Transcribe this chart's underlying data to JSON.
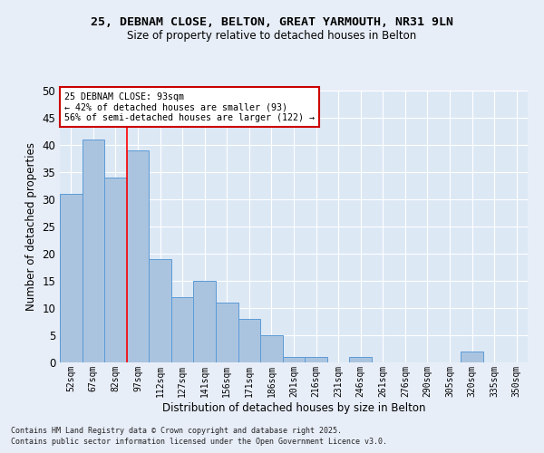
{
  "title1": "25, DEBNAM CLOSE, BELTON, GREAT YARMOUTH, NR31 9LN",
  "title2": "Size of property relative to detached houses in Belton",
  "xlabel": "Distribution of detached houses by size in Belton",
  "ylabel": "Number of detached properties",
  "categories": [
    "52sqm",
    "67sqm",
    "82sqm",
    "97sqm",
    "112sqm",
    "127sqm",
    "141sqm",
    "156sqm",
    "171sqm",
    "186sqm",
    "201sqm",
    "216sqm",
    "231sqm",
    "246sqm",
    "261sqm",
    "276sqm",
    "290sqm",
    "305sqm",
    "320sqm",
    "335sqm",
    "350sqm"
  ],
  "values": [
    31,
    41,
    34,
    39,
    19,
    12,
    15,
    11,
    8,
    5,
    1,
    1,
    0,
    1,
    0,
    0,
    0,
    0,
    2,
    0,
    0
  ],
  "bar_color": "#aac4e0",
  "bar_edge_color": "#5b9bd5",
  "background_color": "#dde8f5",
  "grid_color": "#ffffff",
  "red_line_x": 2.5,
  "annotation_title": "25 DEBNAM CLOSE: 93sqm",
  "annotation_line1": "← 42% of detached houses are smaller (93)",
  "annotation_line2": "56% of semi-detached houses are larger (122) →",
  "annotation_box_color": "#ffffff",
  "annotation_box_edge": "#cc0000",
  "ylim": [
    0,
    50
  ],
  "footnote1": "Contains HM Land Registry data © Crown copyright and database right 2025.",
  "footnote2": "Contains public sector information licensed under the Open Government Licence v3.0."
}
